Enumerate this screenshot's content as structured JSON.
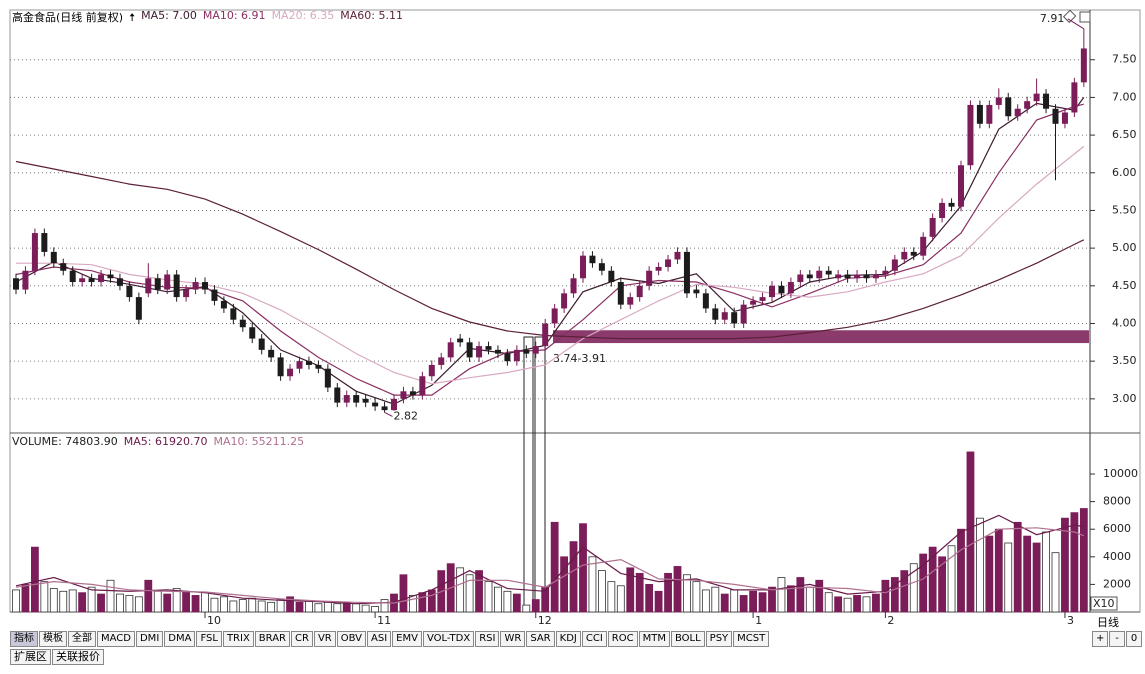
{
  "chart_data": [
    {
      "type": "candlestick",
      "title": "高金食品(日线 前复权)",
      "up_color": "#7b1d58",
      "down_color": "#1c1c1c",
      "grid": true,
      "ylim": [
        2.56,
        8.16
      ],
      "yticks": [
        {
          "value": 3,
          "label": "3.00"
        },
        {
          "value": 3.5,
          "label": "3.50"
        },
        {
          "value": 4,
          "label": "4.00"
        },
        {
          "value": 4.5,
          "label": "4.50"
        },
        {
          "value": 5,
          "label": "5.00"
        },
        {
          "value": 5.5,
          "label": "5.50"
        },
        {
          "value": 6,
          "label": "6.00"
        },
        {
          "value": 6.5,
          "label": "6.50"
        },
        {
          "value": 7,
          "label": "7.00"
        },
        {
          "value": 7.5,
          "label": "7.50"
        }
      ],
      "xticks": [
        {
          "value": 20,
          "label": "10"
        },
        {
          "value": 38,
          "label": "11"
        },
        {
          "value": 55,
          "label": "12"
        },
        {
          "value": 78,
          "label": "1"
        },
        {
          "value": 92,
          "label": "2"
        },
        {
          "value": 111,
          "label": "3"
        }
      ],
      "ohlc": [
        [
          4.6,
          4.66,
          4.39,
          4.45
        ],
        [
          4.45,
          4.76,
          4.39,
          4.7
        ],
        [
          4.7,
          5.26,
          4.64,
          5.2
        ],
        [
          5.2,
          5.26,
          4.89,
          4.95
        ],
        [
          4.95,
          5.01,
          4.74,
          4.8
        ],
        [
          4.8,
          4.86,
          4.64,
          4.7
        ],
        [
          4.7,
          4.76,
          4.49,
          4.55
        ],
        [
          4.55,
          4.66,
          4.49,
          4.6
        ],
        [
          4.6,
          4.66,
          4.49,
          4.55
        ],
        [
          4.55,
          4.71,
          4.49,
          4.65
        ],
        [
          4.65,
          4.71,
          4.54,
          4.6
        ],
        [
          4.6,
          4.66,
          4.44,
          4.5
        ],
        [
          4.5,
          4.56,
          4.29,
          4.35
        ],
        [
          4.35,
          4.41,
          3.99,
          4.05
        ],
        [
          4.4,
          4.8,
          4.35,
          4.6
        ],
        [
          4.6,
          4.66,
          4.39,
          4.45
        ],
        [
          4.45,
          4.71,
          4.39,
          4.65
        ],
        [
          4.65,
          4.71,
          4.29,
          4.35
        ],
        [
          4.35,
          4.51,
          4.29,
          4.45
        ],
        [
          4.45,
          4.61,
          4.39,
          4.55
        ],
        [
          4.55,
          4.61,
          4.39,
          4.45
        ],
        [
          4.45,
          4.51,
          4.24,
          4.3
        ],
        [
          4.3,
          4.36,
          4.14,
          4.2
        ],
        [
          4.2,
          4.26,
          3.99,
          4.05
        ],
        [
          4.05,
          4.11,
          3.89,
          3.95
        ],
        [
          3.95,
          4.01,
          3.74,
          3.8
        ],
        [
          3.8,
          3.86,
          3.59,
          3.65
        ],
        [
          3.65,
          3.71,
          3.49,
          3.55
        ],
        [
          3.55,
          3.61,
          3.24,
          3.3
        ],
        [
          3.3,
          3.46,
          3.24,
          3.4
        ],
        [
          3.4,
          3.56,
          3.34,
          3.5
        ],
        [
          3.5,
          3.56,
          3.39,
          3.45
        ],
        [
          3.45,
          3.51,
          3.34,
          3.4
        ],
        [
          3.4,
          3.46,
          3.09,
          3.15
        ],
        [
          3.15,
          3.21,
          2.89,
          2.95
        ],
        [
          2.95,
          3.11,
          2.89,
          3.05
        ],
        [
          3.05,
          3.11,
          2.89,
          2.95
        ],
        [
          3.0,
          3.06,
          2.89,
          2.95
        ],
        [
          2.95,
          3.01,
          2.84,
          2.9
        ],
        [
          2.9,
          2.96,
          2.82,
          2.85
        ],
        [
          2.85,
          3.06,
          2.84,
          3.0
        ],
        [
          3.0,
          3.16,
          2.94,
          3.1
        ],
        [
          3.1,
          3.16,
          2.99,
          3.05
        ],
        [
          3.05,
          3.36,
          2.99,
          3.3
        ],
        [
          3.3,
          3.51,
          3.24,
          3.45
        ],
        [
          3.45,
          3.61,
          3.39,
          3.55
        ],
        [
          3.55,
          3.81,
          3.49,
          3.75
        ],
        [
          3.8,
          3.86,
          3.69,
          3.75
        ],
        [
          3.75,
          3.81,
          3.49,
          3.55
        ],
        [
          3.55,
          3.76,
          3.49,
          3.7
        ],
        [
          3.7,
          3.76,
          3.59,
          3.65
        ],
        [
          3.65,
          3.71,
          3.54,
          3.6
        ],
        [
          3.6,
          3.66,
          3.44,
          3.5
        ],
        [
          3.5,
          3.71,
          3.44,
          3.65
        ],
        [
          3.65,
          3.71,
          3.54,
          3.6
        ],
        [
          3.6,
          3.76,
          3.54,
          3.7
        ],
        [
          3.7,
          4.06,
          3.64,
          4.0
        ],
        [
          4.0,
          4.26,
          3.94,
          4.2
        ],
        [
          4.2,
          4.46,
          4.14,
          4.4
        ],
        [
          4.4,
          4.66,
          4.34,
          4.6
        ],
        [
          4.6,
          4.96,
          4.54,
          4.9
        ],
        [
          4.9,
          4.96,
          4.74,
          4.8
        ],
        [
          4.8,
          4.86,
          4.64,
          4.7
        ],
        [
          4.7,
          4.76,
          4.49,
          4.55
        ],
        [
          4.55,
          4.61,
          4.19,
          4.25
        ],
        [
          4.25,
          4.41,
          4.19,
          4.35
        ],
        [
          4.35,
          4.56,
          4.29,
          4.5
        ],
        [
          4.5,
          4.76,
          4.44,
          4.7
        ],
        [
          4.7,
          4.81,
          4.64,
          4.75
        ],
        [
          4.75,
          4.91,
          4.69,
          4.85
        ],
        [
          4.85,
          5.01,
          4.79,
          4.95
        ],
        [
          4.95,
          5.01,
          4.34,
          4.4
        ],
        [
          4.45,
          4.51,
          4.34,
          4.4
        ],
        [
          4.4,
          4.46,
          4.14,
          4.2
        ],
        [
          4.2,
          4.26,
          3.99,
          4.05
        ],
        [
          4.05,
          4.21,
          3.99,
          4.15
        ],
        [
          4.15,
          4.21,
          3.94,
          4.0
        ],
        [
          4.0,
          4.31,
          3.94,
          4.25
        ],
        [
          4.25,
          4.36,
          4.19,
          4.3
        ],
        [
          4.3,
          4.41,
          4.24,
          4.35
        ],
        [
          4.35,
          4.56,
          4.29,
          4.5
        ],
        [
          4.5,
          4.56,
          4.34,
          4.4
        ],
        [
          4.4,
          4.61,
          4.34,
          4.55
        ],
        [
          4.55,
          4.71,
          4.49,
          4.65
        ],
        [
          4.65,
          4.71,
          4.54,
          4.6
        ],
        [
          4.6,
          4.76,
          4.54,
          4.7
        ],
        [
          4.7,
          4.76,
          4.59,
          4.65
        ],
        [
          4.6,
          4.71,
          4.54,
          4.65
        ],
        [
          4.65,
          4.71,
          4.54,
          4.6
        ],
        [
          4.6,
          4.71,
          4.54,
          4.65
        ],
        [
          4.65,
          4.71,
          4.54,
          4.6
        ],
        [
          4.6,
          4.71,
          4.54,
          4.65
        ],
        [
          4.65,
          4.76,
          4.59,
          4.7
        ],
        [
          4.7,
          4.91,
          4.64,
          4.85
        ],
        [
          4.85,
          5.01,
          4.79,
          4.95
        ],
        [
          4.95,
          5.01,
          4.84,
          4.9
        ],
        [
          4.9,
          5.21,
          4.84,
          5.15
        ],
        [
          5.15,
          5.46,
          5.09,
          5.4
        ],
        [
          5.4,
          5.66,
          5.34,
          5.6
        ],
        [
          5.6,
          5.66,
          5.49,
          5.55
        ],
        [
          5.55,
          6.16,
          5.49,
          6.1
        ],
        [
          6.1,
          6.96,
          6.04,
          6.9
        ],
        [
          6.9,
          6.96,
          6.59,
          6.65
        ],
        [
          6.65,
          6.96,
          6.59,
          6.9
        ],
        [
          6.9,
          7.12,
          6.84,
          7.0
        ],
        [
          7.0,
          7.06,
          6.69,
          6.75
        ],
        [
          6.75,
          6.91,
          6.69,
          6.85
        ],
        [
          6.85,
          7.01,
          6.79,
          6.95
        ],
        [
          6.95,
          7.25,
          6.89,
          7.05
        ],
        [
          7.05,
          7.11,
          6.79,
          6.85
        ],
        [
          6.85,
          6.91,
          5.9,
          6.65
        ],
        [
          6.65,
          6.86,
          6.59,
          6.8
        ],
        [
          6.8,
          7.26,
          6.74,
          7.2
        ],
        [
          7.2,
          7.91,
          7.14,
          7.65
        ]
      ],
      "ma_x": [
        0,
        4,
        8,
        12,
        16,
        20,
        24,
        28,
        32,
        36,
        40,
        44,
        48,
        52,
        56,
        60,
        64,
        68,
        72,
        76,
        80,
        84,
        88,
        92,
        96,
        100,
        104,
        108,
        112,
        113
      ],
      "series": [
        {
          "name": "MA5: 7.00",
          "color": "#3b1a2e",
          "values": [
            4.55,
            4.82,
            4.6,
            4.52,
            4.42,
            4.49,
            4.14,
            3.65,
            3.44,
            3.1,
            2.93,
            3.18,
            3.67,
            3.6,
            3.71,
            4.42,
            4.6,
            4.53,
            4.66,
            4.16,
            4.28,
            4.55,
            4.64,
            4.65,
            4.96,
            5.56,
            6.58,
            6.92,
            6.83,
            7.0
          ]
        },
        {
          "name": "MA10: 6.91",
          "color": "#8a2f62",
          "values": [
            4.65,
            4.75,
            4.7,
            4.55,
            4.48,
            4.47,
            4.3,
            3.9,
            3.55,
            3.27,
            3.05,
            3.05,
            3.4,
            3.62,
            3.65,
            4.05,
            4.5,
            4.57,
            4.55,
            4.4,
            4.22,
            4.4,
            4.6,
            4.63,
            4.78,
            5.2,
            6.0,
            6.7,
            6.88,
            6.91
          ]
        },
        {
          "name": "MA20: 6.35",
          "color": "#d8a9c2",
          "values": [
            4.8,
            4.8,
            4.78,
            4.65,
            4.58,
            4.52,
            4.4,
            4.18,
            3.9,
            3.6,
            3.35,
            3.2,
            3.28,
            3.35,
            3.45,
            3.8,
            4.05,
            4.3,
            4.52,
            4.48,
            4.4,
            4.35,
            4.42,
            4.55,
            4.66,
            4.9,
            5.4,
            5.85,
            6.25,
            6.35
          ]
        },
        {
          "name": "MA60: 5.11",
          "color": "#5c1f3a",
          "values": [
            6.15,
            6.05,
            5.95,
            5.85,
            5.78,
            5.65,
            5.45,
            5.22,
            4.98,
            4.72,
            4.45,
            4.2,
            4.02,
            3.9,
            3.84,
            3.82,
            3.8,
            3.8,
            3.8,
            3.8,
            3.82,
            3.88,
            3.95,
            4.05,
            4.2,
            4.38,
            4.58,
            4.8,
            5.05,
            5.11
          ]
        }
      ],
      "zone": {
        "low": 3.74,
        "high": 3.91,
        "label": "3.74-3.91",
        "color": "#8b3a6c"
      },
      "annotations": [
        {
          "index": 113,
          "value": 7.91
        },
        {
          "index": 39,
          "value": 2.82
        }
      ]
    },
    {
      "type": "volume",
      "unit": "X10",
      "ylim": [
        0,
        12900
      ],
      "yticks": [
        2000,
        4000,
        6000,
        8000,
        10000
      ],
      "series": [
        {
          "name": "VOLUME: 74803.90",
          "values": [
            1600,
            2000,
            4700,
            2200,
            1700,
            1500,
            1600,
            1400,
            1800,
            1300,
            2300,
            1300,
            1200,
            1100,
            2300,
            1500,
            1300,
            1700,
            1500,
            1200,
            1400,
            1000,
            1100,
            800,
            900,
            1000,
            800,
            700,
            900,
            1100,
            700,
            800,
            600,
            700,
            600,
            700,
            600,
            500,
            400,
            900,
            1300,
            2700,
            1200,
            1400,
            1600,
            3000,
            3500,
            3200,
            2700,
            3000,
            2200,
            1800,
            1500,
            1300,
            500,
            900,
            1800,
            6500,
            4000,
            5100,
            6400,
            4000,
            3000,
            2200,
            1900,
            3200,
            2800,
            2000,
            1500,
            2800,
            3300,
            2700,
            2200,
            1600,
            1800,
            1300,
            1600,
            1200,
            1500,
            1400,
            1800,
            2500,
            1900,
            2500,
            1800,
            2300,
            1400,
            1100,
            1000,
            1200,
            1100,
            1300,
            2300,
            2500,
            3000,
            3500,
            4200,
            4700,
            4000,
            4800,
            6000,
            11600,
            6800,
            5500,
            6000,
            5000,
            6500,
            5500,
            5000,
            5800,
            4300,
            6800,
            7200,
            7500
          ]
        },
        {
          "name": "MA5: 61920.70",
          "color": "#6a1a4a",
          "values": [
            1900,
            2500,
            1600,
            1500,
            1600,
            1400,
            1000,
            850,
            750,
            600,
            700,
            1600,
            3000,
            1700,
            1500,
            4700,
            2800,
            2200,
            2400,
            1600,
            1600,
            2000,
            1300,
            1500,
            3400,
            5800,
            7000,
            5600,
            6300,
            6190
          ]
        },
        {
          "name": "MA10: 55211.25",
          "color": "#b07090",
          "values": [
            1800,
            2200,
            2000,
            1600,
            1500,
            1450,
            1200,
            950,
            800,
            700,
            650,
            1200,
            2300,
            2300,
            1800,
            3400,
            3800,
            2400,
            2300,
            2000,
            1600,
            1800,
            1700,
            1400,
            2400,
            4500,
            6000,
            6100,
            5800,
            5521
          ]
        }
      ]
    }
  ],
  "toolbar": {
    "tabs": [
      "指标",
      "模板",
      "全部",
      "MACD",
      "DMI",
      "DMA",
      "FSL",
      "TRIX",
      "BRAR",
      "CR",
      "VR",
      "OBV",
      "ASI",
      "EMV",
      "VOL-TDX",
      "RSI",
      "WR",
      "SAR",
      "KDJ",
      "CCI",
      "ROC",
      "MTM",
      "BOLL",
      "PSY",
      "MCST"
    ],
    "bottom_tabs": [
      "扩展区",
      "关联报价"
    ],
    "period": "日线",
    "zoom": [
      "+",
      "-",
      "0"
    ]
  }
}
